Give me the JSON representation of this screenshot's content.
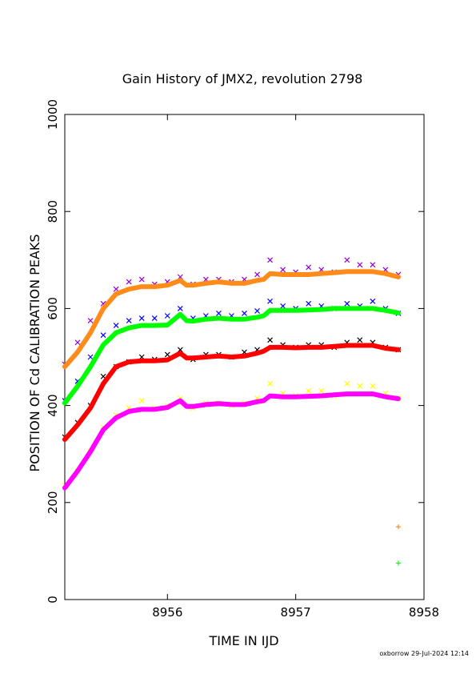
{
  "chart_data": {
    "type": "scatter",
    "title": "Gain History of JMX2, revolution 2798",
    "xlabel": "TIME IN IJD",
    "ylabel": "POSITION OF Cd CALIBRATION PEAKS",
    "xlim": [
      8955.2,
      8958
    ],
    "ylim": [
      0,
      1000
    ],
    "x_ticks": [
      8956,
      8957,
      8958
    ],
    "y_ticks": [
      0,
      200,
      400,
      600,
      800,
      1000
    ],
    "grid": false,
    "footer": "oxborrow 29-Jul-2024 12:14",
    "series": [
      {
        "marker": "x",
        "color": "#9400d3",
        "x": [
          8955.2,
          8955.3,
          8955.4,
          8955.5,
          8955.6,
          8955.7,
          8955.8,
          8955.9,
          8956.0,
          8956.1,
          8956.2,
          8956.3,
          8956.4,
          8956.5,
          8956.6,
          8956.7,
          8956.8,
          8956.9,
          8957.0,
          8957.1,
          8957.2,
          8957.3,
          8957.4,
          8957.5,
          8957.6,
          8957.7,
          8957.8
        ],
        "y": [
          485,
          530,
          575,
          610,
          640,
          655,
          660,
          650,
          655,
          665,
          650,
          660,
          660,
          655,
          660,
          670,
          700,
          680,
          675,
          685,
          680,
          675,
          700,
          690,
          690,
          680,
          670
        ]
      },
      {
        "marker": "x",
        "color": "#0000ff",
        "x": [
          8955.2,
          8955.3,
          8955.4,
          8955.5,
          8955.6,
          8955.7,
          8955.8,
          8955.9,
          8956.0,
          8956.1,
          8956.2,
          8956.3,
          8956.4,
          8956.5,
          8956.6,
          8956.7,
          8956.8,
          8956.9,
          8957.0,
          8957.1,
          8957.2,
          8957.3,
          8957.4,
          8957.5,
          8957.6,
          8957.7,
          8957.8
        ],
        "y": [
          410,
          450,
          500,
          545,
          565,
          575,
          580,
          580,
          585,
          600,
          580,
          585,
          590,
          585,
          590,
          595,
          615,
          605,
          600,
          610,
          605,
          600,
          610,
          605,
          615,
          600,
          590
        ]
      },
      {
        "marker": "x",
        "color": "#000000",
        "x": [
          8955.2,
          8955.3,
          8955.4,
          8955.5,
          8955.6,
          8955.7,
          8955.8,
          8955.9,
          8956.0,
          8956.1,
          8956.2,
          8956.3,
          8956.4,
          8956.5,
          8956.6,
          8956.7,
          8956.8,
          8956.9,
          8957.0,
          8957.1,
          8957.2,
          8957.3,
          8957.4,
          8957.5,
          8957.6,
          8957.7,
          8957.8
        ],
        "y": [
          335,
          365,
          400,
          460,
          480,
          490,
          500,
          495,
          505,
          515,
          495,
          505,
          505,
          500,
          510,
          515,
          535,
          525,
          520,
          525,
          525,
          520,
          530,
          535,
          530,
          520,
          515
        ]
      },
      {
        "marker": "x",
        "color": "#ffff00",
        "x": [
          8955.2,
          8955.3,
          8955.4,
          8955.5,
          8955.6,
          8955.7,
          8955.8,
          8955.9,
          8956.0,
          8956.1,
          8956.2,
          8956.3,
          8956.4,
          8956.5,
          8956.6,
          8956.7,
          8956.8,
          8956.9,
          8957.0,
          8957.1,
          8957.2,
          8957.3,
          8957.4,
          8957.5,
          8957.6,
          8957.7,
          8957.8
        ],
        "y": [
          235,
          265,
          305,
          355,
          380,
          395,
          410,
          395,
          400,
          415,
          395,
          405,
          405,
          400,
          405,
          415,
          445,
          425,
          420,
          430,
          430,
          420,
          445,
          440,
          440,
          425,
          415
        ]
      },
      {
        "marker": "line",
        "color": "#ff8c1a",
        "x": [
          8955.2,
          8955.3,
          8955.4,
          8955.5,
          8955.6,
          8955.7,
          8955.8,
          8955.9,
          8956.0,
          8956.1,
          8956.15,
          8956.2,
          8956.3,
          8956.4,
          8956.5,
          8956.6,
          8956.7,
          8956.75,
          8956.8,
          8956.9,
          8957.0,
          8957.1,
          8957.2,
          8957.3,
          8957.4,
          8957.5,
          8957.6,
          8957.7,
          8957.8
        ],
        "y": [
          480,
          510,
          550,
          600,
          630,
          640,
          645,
          645,
          648,
          658,
          648,
          648,
          652,
          655,
          652,
          652,
          658,
          660,
          672,
          670,
          670,
          670,
          672,
          674,
          676,
          676,
          676,
          672,
          665
        ]
      },
      {
        "marker": "line",
        "color": "#00ff00",
        "x": [
          8955.2,
          8955.3,
          8955.4,
          8955.5,
          8955.6,
          8955.7,
          8955.8,
          8955.9,
          8956.0,
          8956.1,
          8956.15,
          8956.2,
          8956.3,
          8956.4,
          8956.5,
          8956.6,
          8956.7,
          8956.75,
          8956.8,
          8956.9,
          8957.0,
          8957.1,
          8957.2,
          8957.3,
          8957.4,
          8957.5,
          8957.6,
          8957.7,
          8957.8
        ],
        "y": [
          405,
          440,
          480,
          525,
          550,
          560,
          565,
          565,
          566,
          588,
          575,
          574,
          578,
          580,
          578,
          578,
          582,
          585,
          596,
          596,
          596,
          597,
          598,
          600,
          600,
          600,
          600,
          596,
          591
        ]
      },
      {
        "marker": "line",
        "color": "#ff0000",
        "x": [
          8955.2,
          8955.3,
          8955.4,
          8955.5,
          8955.6,
          8955.7,
          8955.8,
          8955.9,
          8956.0,
          8956.1,
          8956.15,
          8956.2,
          8956.3,
          8956.4,
          8956.5,
          8956.6,
          8956.7,
          8956.75,
          8956.8,
          8956.9,
          8957.0,
          8957.1,
          8957.2,
          8957.3,
          8957.4,
          8957.5,
          8957.6,
          8957.7,
          8957.8
        ],
        "y": [
          330,
          360,
          395,
          445,
          480,
          490,
          492,
          492,
          494,
          508,
          498,
          498,
          500,
          502,
          500,
          502,
          508,
          512,
          520,
          520,
          519,
          520,
          520,
          522,
          524,
          524,
          524,
          518,
          515
        ]
      },
      {
        "marker": "line",
        "color": "#ff00ff",
        "x": [
          8955.2,
          8955.3,
          8955.4,
          8955.5,
          8955.6,
          8955.7,
          8955.8,
          8955.9,
          8956.0,
          8956.1,
          8956.15,
          8956.2,
          8956.3,
          8956.4,
          8956.5,
          8956.6,
          8956.7,
          8956.75,
          8956.8,
          8956.9,
          8957.0,
          8957.1,
          8957.2,
          8957.3,
          8957.4,
          8957.5,
          8957.6,
          8957.7,
          8957.8
        ],
        "y": [
          230,
          265,
          305,
          350,
          375,
          388,
          392,
          392,
          396,
          410,
          398,
          398,
          402,
          404,
          402,
          402,
          408,
          410,
          420,
          418,
          418,
          419,
          420,
          422,
          424,
          424,
          424,
          418,
          414
        ]
      },
      {
        "marker": "plus",
        "color": "#ff8c1a",
        "x": [
          8957.8
        ],
        "y": [
          150
        ]
      },
      {
        "marker": "plus",
        "color": "#00ff00",
        "x": [
          8957.8
        ],
        "y": [
          75
        ]
      }
    ]
  }
}
